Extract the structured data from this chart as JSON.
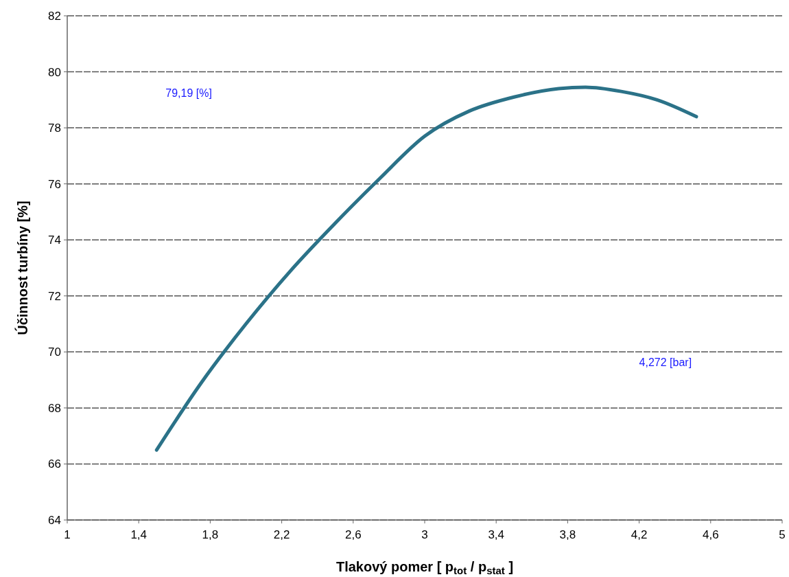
{
  "chart_data": {
    "type": "line",
    "xlabel": "Tlakový pomer [ p$_{tot}$ / p$_{stat}$ ]",
    "ylabel": "Účinnost turbíny [%]",
    "xlim": [
      1,
      5
    ],
    "ylim": [
      64,
      82
    ],
    "xticks": [
      1,
      {
        "value": 1.4,
        "label": "1,4"
      },
      {
        "value": 1.8,
        "label": "1,8"
      },
      {
        "value": 2.2,
        "label": "2,2"
      },
      {
        "value": 2.6,
        "label": "2,6"
      },
      3,
      {
        "value": 3.4,
        "label": "3,4"
      },
      {
        "value": 3.8,
        "label": "3,8"
      },
      {
        "value": 4.2,
        "label": "4,2"
      },
      {
        "value": 4.6,
        "label": "4,6"
      },
      5
    ],
    "yticks": [
      64,
      66,
      68,
      70,
      72,
      74,
      76,
      78,
      80,
      82
    ],
    "grid": "y",
    "line_style": "solid",
    "annotations": [
      "79,19 [%]",
      "4,272 [bar]"
    ],
    "series": [
      {
        "color": "#2b7288",
        "x": [
          1.5,
          1.75,
          2.0,
          2.25,
          2.5,
          2.75,
          3.0,
          3.25,
          3.5,
          3.75,
          3.9,
          4.1,
          4.3,
          4.52
        ],
        "values": [
          66.5,
          68.9,
          71.0,
          72.9,
          74.6,
          76.2,
          77.7,
          78.6,
          79.1,
          79.4,
          79.45,
          79.3,
          79.0,
          78.4
        ]
      }
    ]
  }
}
